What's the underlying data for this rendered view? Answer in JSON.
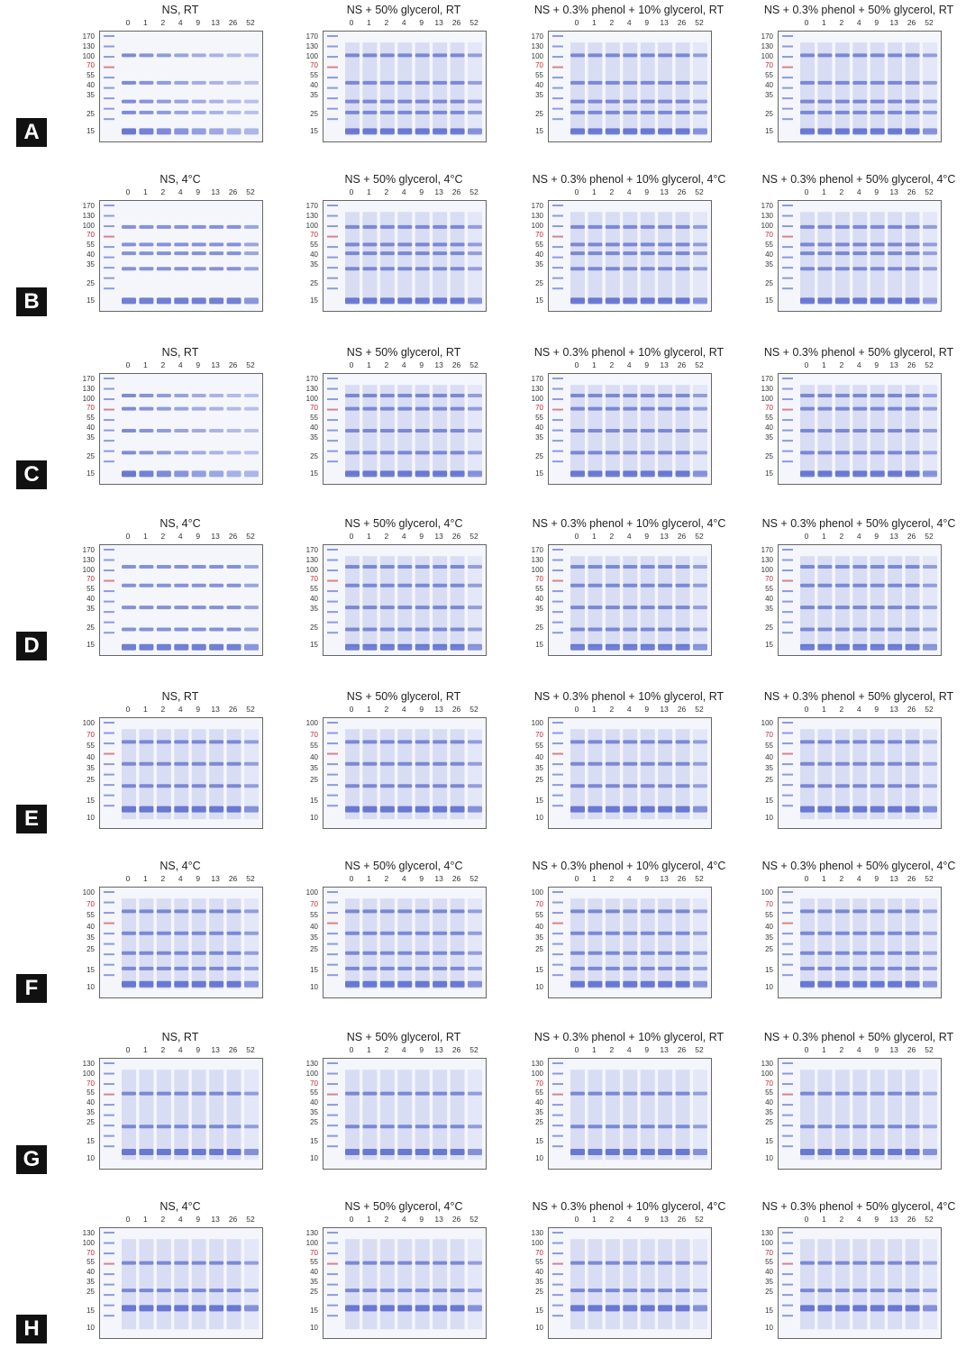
{
  "rows": [
    {
      "label": "A",
      "panels": [
        {
          "title": "NS, RT",
          "lanes": [
            "0",
            "1",
            "2",
            "4",
            "9",
            "13",
            "26",
            "52"
          ],
          "markers": [
            "170",
            "130",
            "100",
            "70",
            "55",
            "40",
            "35",
            "25",
            "15"
          ],
          "red": "70"
        },
        {
          "title": "NS + 50% glycerol, RT",
          "lanes": [
            "0",
            "1",
            "2",
            "4",
            "9",
            "13",
            "26",
            "52"
          ],
          "markers": [
            "170",
            "130",
            "100",
            "70",
            "55",
            "40",
            "35",
            "25",
            "15"
          ],
          "red": "70"
        },
        {
          "title": "NS + 0.3% phenol + 10% glycerol, RT",
          "lanes": [
            "0",
            "1",
            "2",
            "4",
            "9",
            "13",
            "26",
            "52"
          ],
          "markers": [
            "170",
            "130",
            "100",
            "70",
            "55",
            "40",
            "35",
            "25",
            "15"
          ],
          "red": "70"
        },
        {
          "title": "NS + 0.3% phenol + 50% glycerol, RT",
          "lanes": [
            "0",
            "1",
            "2",
            "4",
            "9",
            "13",
            "26",
            "52"
          ],
          "markers": [
            "170",
            "130",
            "100",
            "70",
            "55",
            "40",
            "35",
            "25",
            "15"
          ],
          "red": "70"
        }
      ]
    },
    {
      "label": "B",
      "panels": [
        {
          "title": "NS, 4°C",
          "lanes": [
            "0",
            "1",
            "2",
            "4",
            "9",
            "13",
            "26",
            "52"
          ],
          "markers": [
            "170",
            "130",
            "100",
            "70",
            "55",
            "40",
            "35",
            "25",
            "15"
          ],
          "red": "70"
        },
        {
          "title": "NS + 50% glycerol,  4°C",
          "lanes": [
            "0",
            "1",
            "2",
            "4",
            "9",
            "13",
            "26",
            "52"
          ],
          "markers": [
            "170",
            "130",
            "100",
            "70",
            "55",
            "40",
            "35",
            "25",
            "15"
          ],
          "red": "70"
        },
        {
          "title": "NS + 0.3% phenol + 10% glycerol,  4°C",
          "lanes": [
            "0",
            "1",
            "2",
            "4",
            "9",
            "13",
            "26",
            "52"
          ],
          "markers": [
            "170",
            "130",
            "100",
            "70",
            "55",
            "40",
            "35",
            "25",
            "15"
          ],
          "red": "70"
        },
        {
          "title": "NS + 0.3% phenol + 50% glycerol,  4°C",
          "lanes": [
            "0",
            "1",
            "2",
            "4",
            "9",
            "13",
            "26",
            "52"
          ],
          "markers": [
            "170",
            "130",
            "100",
            "70",
            "55",
            "40",
            "35",
            "25",
            "15"
          ],
          "red": "70"
        }
      ]
    },
    {
      "label": "C",
      "panels": [
        {
          "title": "NS, RT",
          "lanes": [
            "0",
            "1",
            "2",
            "4",
            "9",
            "13",
            "26",
            "52"
          ],
          "markers": [
            "170",
            "130",
            "100",
            "70",
            "55",
            "40",
            "35",
            "25",
            "15"
          ],
          "red": "70"
        },
        {
          "title": "NS + 50% glycerol, RT",
          "lanes": [
            "0",
            "1",
            "2",
            "4",
            "9",
            "13",
            "26",
            "52"
          ],
          "markers": [
            "170",
            "130",
            "100",
            "70",
            "55",
            "40",
            "35",
            "25",
            "15"
          ],
          "red": "70"
        },
        {
          "title": "NS + 0.3% phenol + 10% glycerol, RT",
          "lanes": [
            "0",
            "1",
            "2",
            "4",
            "9",
            "13",
            "26",
            "52"
          ],
          "markers": [
            "170",
            "130",
            "100",
            "70",
            "55",
            "40",
            "35",
            "25",
            "15"
          ],
          "red": "70"
        },
        {
          "title": "NS + 0.3% phenol + 50% glycerol, RT",
          "lanes": [
            "0",
            "1",
            "2",
            "4",
            "9",
            "13",
            "26",
            "52"
          ],
          "markers": [
            "170",
            "130",
            "100",
            "70",
            "55",
            "40",
            "35",
            "25",
            "15"
          ],
          "red": "70"
        }
      ]
    },
    {
      "label": "D",
      "panels": [
        {
          "title": "NS, 4°C",
          "lanes": [
            "0",
            "1",
            "2",
            "4",
            "9",
            "13",
            "26",
            "52"
          ],
          "markers": [
            "170",
            "130",
            "100",
            "70",
            "55",
            "40",
            "35",
            "25",
            "15"
          ],
          "red": "70"
        },
        {
          "title": "NS + 50% glycerol,  4°C",
          "lanes": [
            "0",
            "1",
            "2",
            "4",
            "9",
            "13",
            "26",
            "52"
          ],
          "markers": [
            "170",
            "130",
            "100",
            "70",
            "55",
            "40",
            "35",
            "25",
            "15"
          ],
          "red": "70"
        },
        {
          "title": "NS + 0.3% phenol + 10% glycerol,  4°C",
          "lanes": [
            "0",
            "1",
            "2",
            "4",
            "9",
            "13",
            "26",
            "52"
          ],
          "markers": [
            "170",
            "130",
            "100",
            "70",
            "55",
            "40",
            "35",
            "25",
            "15"
          ],
          "red": "70"
        },
        {
          "title": "NS + 0.3% phenol + 50% glycerol,  4°C",
          "lanes": [
            "0",
            "1",
            "2",
            "4",
            "9",
            "13",
            "26",
            "52"
          ],
          "markers": [
            "170",
            "130",
            "100",
            "70",
            "55",
            "40",
            "35",
            "25",
            "15"
          ],
          "red": "70"
        }
      ]
    },
    {
      "label": "E",
      "panels": [
        {
          "title": "NS, RT",
          "lanes": [
            "0",
            "1",
            "2",
            "4",
            "9",
            "13",
            "26",
            "52"
          ],
          "markers": [
            "100",
            "70",
            "55",
            "40",
            "35",
            "25",
            "15",
            "10"
          ],
          "red": "70"
        },
        {
          "title": "NS + 50% glycerol, RT",
          "lanes": [
            "0",
            "1",
            "2",
            "4",
            "9",
            "13",
            "26",
            "52"
          ],
          "markers": [
            "100",
            "70",
            "55",
            "40",
            "35",
            "25",
            "15",
            "10"
          ],
          "red": "70"
        },
        {
          "title": "NS + 0.3% phenol + 10% glycerol, RT",
          "lanes": [
            "0",
            "1",
            "2",
            "4",
            "9",
            "13",
            "26",
            "52"
          ],
          "markers": [
            "100",
            "70",
            "55",
            "40",
            "35",
            "25",
            "15",
            "10"
          ],
          "red": "70"
        },
        {
          "title": "NS + 0.3% phenol + 50% glycerol, RT",
          "lanes": [
            "0",
            "1",
            "2",
            "4",
            "9",
            "13",
            "26",
            "52"
          ],
          "markers": [
            "100",
            "70",
            "55",
            "40",
            "35",
            "25",
            "15",
            "10"
          ],
          "red": "70"
        }
      ]
    },
    {
      "label": "F",
      "panels": [
        {
          "title": "NS, 4°C",
          "lanes": [
            "0",
            "1",
            "2",
            "4",
            "9",
            "13",
            "26",
            "52"
          ],
          "markers": [
            "100",
            "70",
            "55",
            "40",
            "35",
            "25",
            "15",
            "10"
          ],
          "red": "70"
        },
        {
          "title": "NS + 50% glycerol,  4°C",
          "lanes": [
            "0",
            "1",
            "2",
            "4",
            "9",
            "13",
            "26",
            "52"
          ],
          "markers": [
            "100",
            "70",
            "55",
            "40",
            "35",
            "25",
            "15",
            "10"
          ],
          "red": "70"
        },
        {
          "title": "NS + 0.3% phenol + 10% glycerol,  4°C",
          "lanes": [
            "0",
            "1",
            "2",
            "4",
            "9",
            "13",
            "26",
            "52"
          ],
          "markers": [
            "100",
            "70",
            "55",
            "40",
            "35",
            "25",
            "15",
            "10"
          ],
          "red": "70"
        },
        {
          "title": "NS + 0.3% phenol + 50% glycerol,  4°C",
          "lanes": [
            "0",
            "1",
            "2",
            "4",
            "9",
            "13",
            "26",
            "52"
          ],
          "markers": [
            "100",
            "70",
            "55",
            "40",
            "35",
            "25",
            "15",
            "10"
          ],
          "red": "70"
        }
      ]
    },
    {
      "label": "G",
      "panels": [
        {
          "title": "NS, RT",
          "lanes": [
            "0",
            "1",
            "2",
            "4",
            "9",
            "13",
            "26",
            "52"
          ],
          "markers": [
            "130",
            "100",
            "70",
            "55",
            "40",
            "35",
            "25",
            "15",
            "10"
          ],
          "red": "70"
        },
        {
          "title": "NS + 50% glycerol, RT",
          "lanes": [
            "0",
            "1",
            "2",
            "4",
            "9",
            "13",
            "26",
            "52"
          ],
          "markers": [
            "130",
            "100",
            "70",
            "55",
            "40",
            "35",
            "25",
            "15",
            "10"
          ],
          "red": "70"
        },
        {
          "title": "NS + 0.3% phenol + 10% glycerol, RT",
          "lanes": [
            "0",
            "1",
            "2",
            "4",
            "9",
            "13",
            "26",
            "52"
          ],
          "markers": [
            "130",
            "100",
            "70",
            "55",
            "40",
            "35",
            "25",
            "15",
            "10"
          ],
          "red": "70"
        },
        {
          "title": "NS + 0.3% phenol + 50% glycerol, RT",
          "lanes": [
            "0",
            "1",
            "2",
            "4",
            "9",
            "13",
            "26",
            "52"
          ],
          "markers": [
            "130",
            "100",
            "70",
            "55",
            "40",
            "35",
            "25",
            "15",
            "10"
          ],
          "red": "70"
        }
      ]
    },
    {
      "label": "H",
      "panels": [
        {
          "title": "NS, 4°C",
          "lanes": [
            "0",
            "1",
            "2",
            "4",
            "9",
            "13",
            "26",
            "52"
          ],
          "markers": [
            "130",
            "100",
            "70",
            "55",
            "40",
            "35",
            "25",
            "15",
            "10"
          ],
          "red": "70"
        },
        {
          "title": "NS + 50% glycerol,  4°C",
          "lanes": [
            "0",
            "1",
            "2",
            "4",
            "9",
            "13",
            "26",
            "52"
          ],
          "markers": [
            "130",
            "100",
            "70",
            "55",
            "40",
            "35",
            "25",
            "15",
            "10"
          ],
          "red": "70"
        },
        {
          "title": "NS + 0.3% phenol + 10% glycerol,  4°C",
          "lanes": [
            "0",
            "1",
            "2",
            "4",
            "9",
            "13",
            "26",
            "52"
          ],
          "markers": [
            "130",
            "100",
            "70",
            "55",
            "40",
            "35",
            "25",
            "15",
            "10"
          ],
          "red": "70"
        },
        {
          "title": "NS + 0.3% phenol + 50% glycerol,  4°C",
          "lanes": [
            "0",
            "1",
            "2",
            "4",
            "9",
            "13",
            "26",
            "52"
          ],
          "markers": [
            "130",
            "100",
            "70",
            "55",
            "40",
            "35",
            "25",
            "15",
            "10"
          ],
          "red": "70"
        }
      ]
    }
  ],
  "colors": {
    "band": "#3b4fc4",
    "marker_red": "#c0262e",
    "gel_bg": "#f4f6fc"
  }
}
